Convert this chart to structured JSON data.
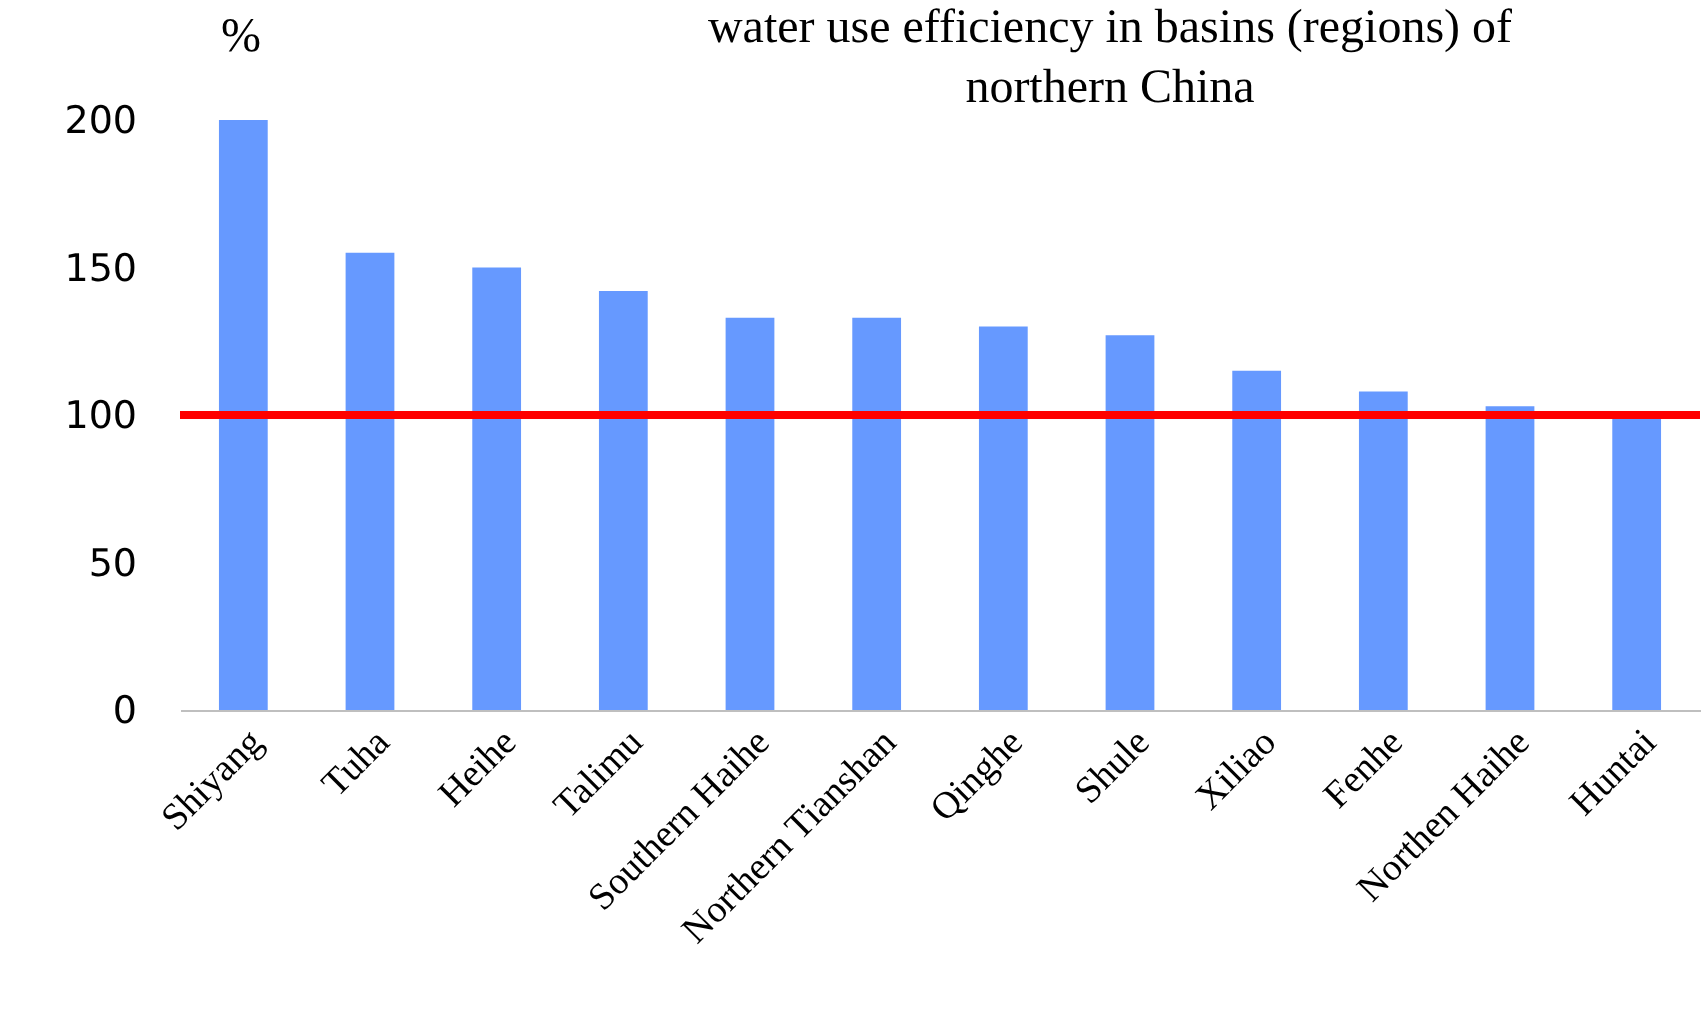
{
  "chart_data": {
    "type": "bar",
    "title": "water use efficiency in basins (regions) of northern China",
    "ylabel": "%",
    "categories": [
      "Shiyang",
      "Tuha",
      "Heihe",
      "Talimu",
      "Southern Haihe",
      "Northern Tianshan",
      "Qinghe",
      "Shule",
      "Xiliao",
      "Fenhe",
      "Northen Haihe",
      "Huntai"
    ],
    "values": [
      200,
      155,
      150,
      142,
      133,
      133,
      130,
      127,
      115,
      108,
      103,
      101
    ],
    "color": "#6699ff",
    "ylim": [
      0,
      200
    ],
    "yticks": [
      0,
      50,
      100,
      150,
      200
    ],
    "grid": false,
    "ref_lines": [
      {
        "axis": "y",
        "value": 100,
        "color": "#ff0000",
        "line_style": "solid"
      }
    ]
  }
}
